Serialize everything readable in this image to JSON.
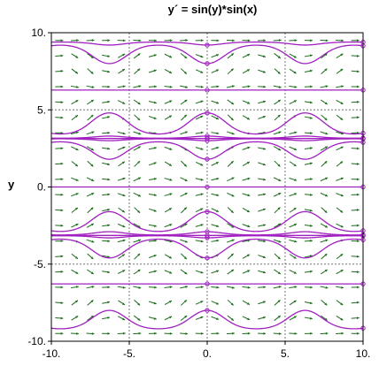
{
  "chart_data": {
    "type": "line",
    "title": "y´ = sin(y)*sin(x)",
    "xlabel": "",
    "ylabel": "y",
    "xlim": [
      -10,
      10
    ],
    "ylim": [
      -10,
      10
    ],
    "x_ticks": [
      -10,
      -5,
      0,
      5,
      10
    ],
    "y_ticks": [
      -10,
      -5,
      0,
      5,
      10
    ],
    "x_tick_labels": [
      "-10.",
      "-5.",
      "0.",
      "5.",
      "10."
    ],
    "y_tick_labels": [
      "-10.",
      "-5.",
      "0.",
      "5.",
      "10."
    ],
    "grid": true,
    "direction_field": {
      "equation": "y' = sin(y)*sin(x)",
      "arrow_color": "#1a6b1a",
      "x_step": 1,
      "y_step": 1
    },
    "solution_color": "#a020c0",
    "solution_initial_values_at_x0": [
      -8.0,
      -6.2832,
      -4.6,
      -3.3,
      -3.1416,
      -2.9,
      -1.6,
      0.0,
      1.8,
      3.0,
      3.1416,
      3.3,
      4.8,
      6.2832,
      8.0,
      9.2
    ]
  }
}
